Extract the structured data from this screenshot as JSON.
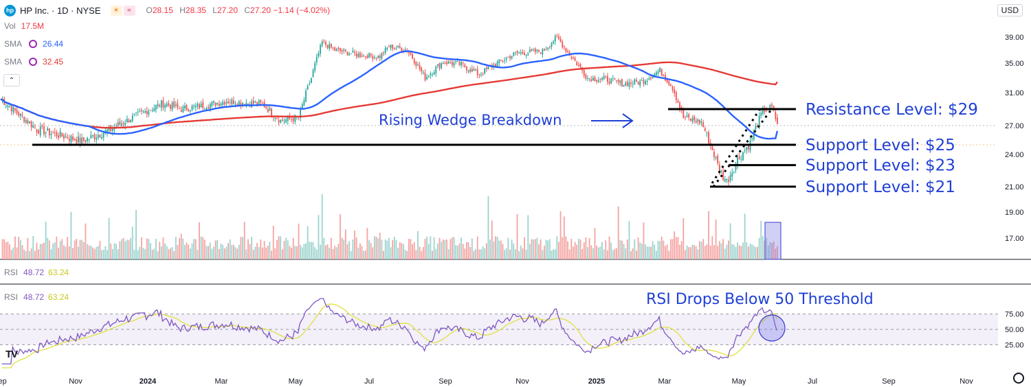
{
  "header": {
    "logo_text": "hp",
    "symbol": "HP Inc. · 1D · NYSE",
    "ohlc": [
      {
        "label": "O",
        "value": "28.15"
      },
      {
        "label": "H",
        "value": "28.35"
      },
      {
        "label": "L",
        "value": "27.20"
      },
      {
        "label": "C",
        "value": "27.20 −1.14 (−4.02%)"
      }
    ],
    "currency": "USD"
  },
  "indicators": {
    "vol_label": "Vol",
    "vol_value": "17.5M",
    "sma1_label": "SMA",
    "sma1_value": "26.44",
    "sma2_label": "SMA",
    "sma2_value": "32.45",
    "rsi_label": "RSI",
    "rsi_value": "48.72",
    "rsi_ma_value": "63.24",
    "rsi_label2": "RSI",
    "rsi_value2": "48.72",
    "rsi_ma_value2": "63.24"
  },
  "colors": {
    "up": "#26a69a",
    "down": "#ef5350",
    "sma_short": "#2962ff",
    "sma_long": "#e53935",
    "rsi": "#7e57c2",
    "rsi_ma": "#e6e632",
    "annotation": "#1f3fd6"
  },
  "chart_data": {
    "type": "candlestick",
    "price_axis_ticks": [
      "39.00",
      "35.00",
      "31.00",
      "27.00",
      "24.00",
      "21.00",
      "19.00",
      "17.00"
    ],
    "rsi_axis_ticks": [
      "75.00",
      "50.00",
      "25.00"
    ],
    "x_axis_ticks": [
      "Sep",
      "Nov",
      "2024",
      "Mar",
      "May",
      "Jul",
      "Sep",
      "Nov",
      "2025",
      "Mar",
      "May",
      "Jul",
      "Sep",
      "Nov"
    ],
    "last_price": 27.2,
    "rsi_latest": 48.72,
    "rsi_ma_latest": 63.24,
    "sma_short_latest": 26.44,
    "sma_long_latest": 32.45,
    "volume_latest": "17.5M",
    "annotations": [
      {
        "text": "Resistance Level: $29",
        "level": 29
      },
      {
        "text": "Support Level: $25",
        "level": 25
      },
      {
        "text": "Support Level: $23",
        "level": 23
      },
      {
        "text": "Support Level: $21",
        "level": 21
      },
      {
        "text": "Rising Wedge Breakdown"
      },
      {
        "text": "RSI Drops Below 50 Threshold"
      }
    ]
  }
}
